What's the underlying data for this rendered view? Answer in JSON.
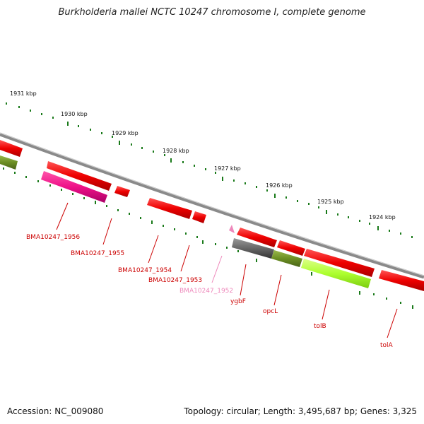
{
  "header": {
    "title": "Burkholderia mallei NCTC 10247 chromosome I, complete genome"
  },
  "footer": {
    "accession": "Accession: NC_009080",
    "summary": "Topology: circular; Length: 3,495,687 bp; Genes: 3,325"
  },
  "ruler": {
    "labels": [
      "1931 kbp",
      "1930 kbp",
      "1929 kbp",
      "1928 kbp",
      "1927 kbp",
      "1926 kbp",
      "1925 kbp",
      "1924 kbp"
    ]
  },
  "genes": [
    {
      "label": "BMA10247_1956",
      "color": "#cc0000"
    },
    {
      "label": "BMA10247_1955",
      "color": "#cc0000"
    },
    {
      "label": "BMA10247_1954",
      "color": "#cc0000"
    },
    {
      "label": "BMA10247_1953",
      "color": "#cc0000"
    },
    {
      "label": "BMA10247_1952",
      "color": "#ee88bb"
    },
    {
      "label": "ygbF",
      "color": "#cc0000"
    },
    {
      "label": "opcL",
      "color": "#cc0000"
    },
    {
      "label": "tolB",
      "color": "#cc0000"
    },
    {
      "label": "tolA",
      "color": "#cc0000"
    }
  ],
  "colors": {
    "cds_red": "#ee1111",
    "pseudo_magenta": "#ee1188",
    "rna_gray": "#666666",
    "olive": "#6b8e23",
    "lime": "#adff2f",
    "tick_green": "#1a7a1a",
    "backbone": "#8a8a8a"
  }
}
